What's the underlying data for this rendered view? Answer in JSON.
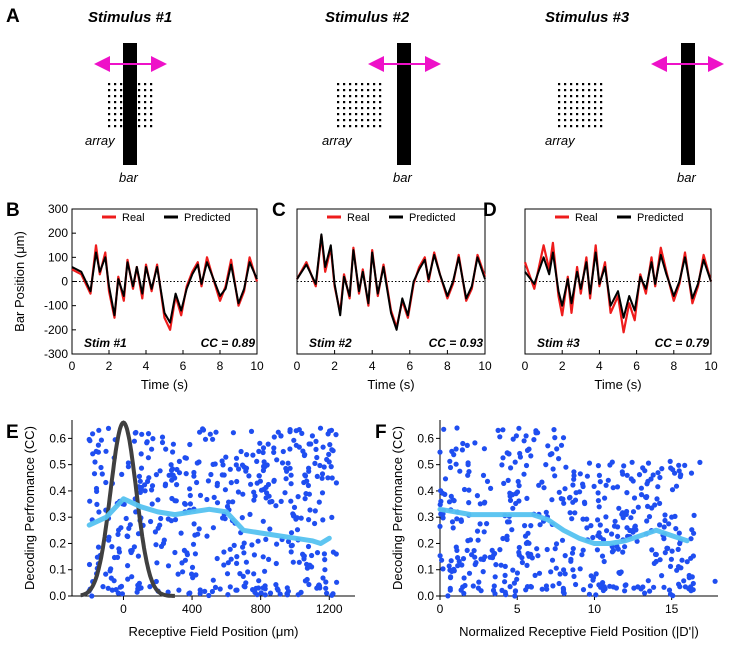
{
  "colors": {
    "real": "#ee1c1c",
    "predicted": "#000000",
    "arrow": "#ee11c8",
    "dot": "#1f4ef0",
    "fit": "#55c2f0",
    "gauss": "#404040"
  },
  "panel_labels": {
    "a": "A",
    "b": "B",
    "c": "C",
    "d": "D",
    "e": "E",
    "f": "F"
  },
  "stimuli": [
    {
      "title": "Stimulus #1",
      "array_label": "array",
      "bar_label": "bar"
    },
    {
      "title": "Stimulus #2",
      "array_label": "array",
      "bar_label": "bar"
    },
    {
      "title": "Stimulus #3",
      "array_label": "array",
      "bar_label": "bar"
    }
  ],
  "chart_data": [
    {
      "type": "line",
      "panel": "B",
      "title": "",
      "xlabel": "Time (s)",
      "ylabel": "Bar Position (μm)",
      "xlim": [
        0,
        10
      ],
      "ylim": [
        -300,
        300
      ],
      "xticks": [
        "0",
        "2",
        "4",
        "6",
        "8",
        "10"
      ],
      "yticks": [
        "300",
        "200",
        "100",
        "0",
        "-100",
        "-200",
        "-300"
      ],
      "legend": {
        "real": "Real",
        "predicted": "Predicted"
      },
      "annotation_left": "Stim #1",
      "annotation_right": "CC = 0.89",
      "t": [
        0,
        0.5,
        1.0,
        1.3,
        1.5,
        1.8,
        2.0,
        2.3,
        2.5,
        2.8,
        3.0,
        3.3,
        3.5,
        3.8,
        4.0,
        4.3,
        4.6,
        5.0,
        5.3,
        5.6,
        5.9,
        6.2,
        6.5,
        6.8,
        7.0,
        7.3,
        7.6,
        8.0,
        8.3,
        8.6,
        9.0,
        9.3,
        9.6,
        10.0
      ],
      "series": [
        {
          "name": "Real",
          "values": [
            50,
            30,
            -50,
            150,
            30,
            120,
            -40,
            -150,
            20,
            -80,
            90,
            -30,
            60,
            -70,
            70,
            -40,
            70,
            -150,
            -200,
            -60,
            -140,
            -20,
            40,
            80,
            -20,
            100,
            20,
            -80,
            -20,
            90,
            -100,
            -40,
            100,
            0
          ]
        },
        {
          "name": "Predicted",
          "values": [
            60,
            40,
            -40,
            120,
            40,
            100,
            -20,
            -140,
            10,
            -60,
            80,
            -20,
            60,
            -50,
            60,
            -30,
            60,
            -130,
            -170,
            -50,
            -120,
            -30,
            30,
            70,
            -10,
            80,
            20,
            -60,
            -30,
            70,
            -90,
            -30,
            80,
            10
          ]
        }
      ]
    },
    {
      "type": "line",
      "panel": "C",
      "title": "",
      "xlabel": "Time (s)",
      "ylabel": "",
      "xlim": [
        0,
        10
      ],
      "ylim": [
        -300,
        300
      ],
      "xticks": [
        "0",
        "2",
        "4",
        "6",
        "8",
        "10"
      ],
      "legend": {
        "real": "Real",
        "predicted": "Predicted"
      },
      "annotation_left": "Stim #2",
      "annotation_right": "CC = 0.93",
      "t": [
        0,
        0.5,
        1.0,
        1.3,
        1.5,
        1.8,
        2.0,
        2.3,
        2.5,
        2.8,
        3.0,
        3.3,
        3.5,
        3.8,
        4.0,
        4.3,
        4.6,
        5.0,
        5.3,
        5.6,
        5.9,
        6.2,
        6.5,
        6.8,
        7.0,
        7.3,
        7.6,
        8.0,
        8.3,
        8.6,
        9.0,
        9.3,
        9.6,
        10.0
      ],
      "series": [
        {
          "name": "Real",
          "values": [
            10,
            80,
            -20,
            190,
            40,
            140,
            -20,
            -130,
            30,
            -70,
            140,
            -50,
            50,
            -100,
            130,
            -60,
            70,
            -120,
            -190,
            -80,
            -150,
            -10,
            60,
            100,
            0,
            120,
            30,
            -70,
            -10,
            110,
            -80,
            -30,
            110,
            20
          ]
        },
        {
          "name": "Predicted",
          "values": [
            10,
            70,
            -10,
            195,
            60,
            150,
            -10,
            -140,
            20,
            -60,
            130,
            -40,
            40,
            -90,
            120,
            -50,
            60,
            -130,
            -200,
            -70,
            -140,
            0,
            50,
            90,
            10,
            110,
            30,
            -60,
            0,
            100,
            -70,
            -20,
            100,
            10
          ]
        }
      ]
    },
    {
      "type": "line",
      "panel": "D",
      "title": "",
      "xlabel": "Time (s)",
      "ylabel": "",
      "xlim": [
        0,
        10
      ],
      "ylim": [
        -300,
        300
      ],
      "xticks": [
        "0",
        "2",
        "4",
        "6",
        "8",
        "10"
      ],
      "legend": {
        "real": "Real",
        "predicted": "Predicted"
      },
      "annotation_left": "Stim #3",
      "annotation_right": "CC = 0.79",
      "t": [
        0,
        0.5,
        1.0,
        1.3,
        1.5,
        1.8,
        2.0,
        2.3,
        2.5,
        2.8,
        3.0,
        3.3,
        3.5,
        3.8,
        4.0,
        4.3,
        4.6,
        5.0,
        5.3,
        5.6,
        5.9,
        6.2,
        6.5,
        6.8,
        7.0,
        7.3,
        7.6,
        8.0,
        8.3,
        8.6,
        9.0,
        9.3,
        9.6,
        10.0
      ],
      "series": [
        {
          "name": "Real",
          "values": [
            80,
            -30,
            150,
            50,
            160,
            -60,
            -140,
            20,
            -130,
            60,
            -50,
            100,
            -70,
            150,
            -20,
            80,
            -130,
            -60,
            -210,
            -90,
            -160,
            30,
            -50,
            100,
            -20,
            140,
            40,
            -80,
            -10,
            120,
            -90,
            -20,
            110,
            0
          ]
        },
        {
          "name": "Predicted",
          "values": [
            40,
            -10,
            100,
            30,
            120,
            -40,
            -100,
            10,
            -90,
            40,
            -30,
            80,
            -50,
            120,
            -10,
            60,
            -100,
            -40,
            -150,
            -60,
            -120,
            20,
            -30,
            80,
            -10,
            110,
            30,
            -60,
            0,
            100,
            -70,
            -10,
            90,
            0
          ]
        }
      ]
    },
    {
      "type": "scatter",
      "panel": "E",
      "title": "",
      "xlabel": "Receptive Field Position (μm)",
      "ylabel": "Decoding Perfromance (CC)",
      "xlim": [
        -300,
        1350
      ],
      "ylim": [
        0,
        0.67
      ],
      "xticks": [
        0,
        400,
        800,
        1200
      ],
      "yticks": [
        0.0,
        0.1,
        0.2,
        0.3,
        0.4,
        0.5,
        0.6
      ],
      "n_points": 480,
      "seed": 7,
      "fit": {
        "x": [
          -200,
          -100,
          0,
          100,
          200,
          300,
          400,
          500,
          600,
          700,
          800,
          900,
          1000,
          1100,
          1150,
          1200
        ],
        "y": [
          0.27,
          0.3,
          0.37,
          0.34,
          0.32,
          0.31,
          0.32,
          0.33,
          0.32,
          0.25,
          0.24,
          0.23,
          0.22,
          0.21,
          0.2,
          0.22
        ]
      },
      "gaussian": {
        "center": 0,
        "sigma": 75,
        "peak": 0.66
      }
    },
    {
      "type": "scatter",
      "panel": "F",
      "title": "",
      "xlabel": "Normalized Receptive Field Position (|D'|)",
      "ylabel": "Decoding Perfromance (CC)",
      "xlim": [
        0,
        18
      ],
      "ylim": [
        0,
        0.67
      ],
      "xticks": [
        0,
        5,
        10,
        15
      ],
      "yticks": [
        0.0,
        0.1,
        0.2,
        0.3,
        0.4,
        0.5,
        0.6
      ],
      "n_points": 480,
      "seed": 19,
      "fit": {
        "x": [
          0,
          1,
          2,
          3,
          4,
          5,
          6,
          7,
          8,
          9,
          10,
          11,
          12,
          13,
          14,
          15,
          16
        ],
        "y": [
          0.33,
          0.32,
          0.31,
          0.31,
          0.31,
          0.31,
          0.31,
          0.29,
          0.25,
          0.22,
          0.2,
          0.2,
          0.21,
          0.23,
          0.25,
          0.23,
          0.21
        ]
      }
    }
  ]
}
